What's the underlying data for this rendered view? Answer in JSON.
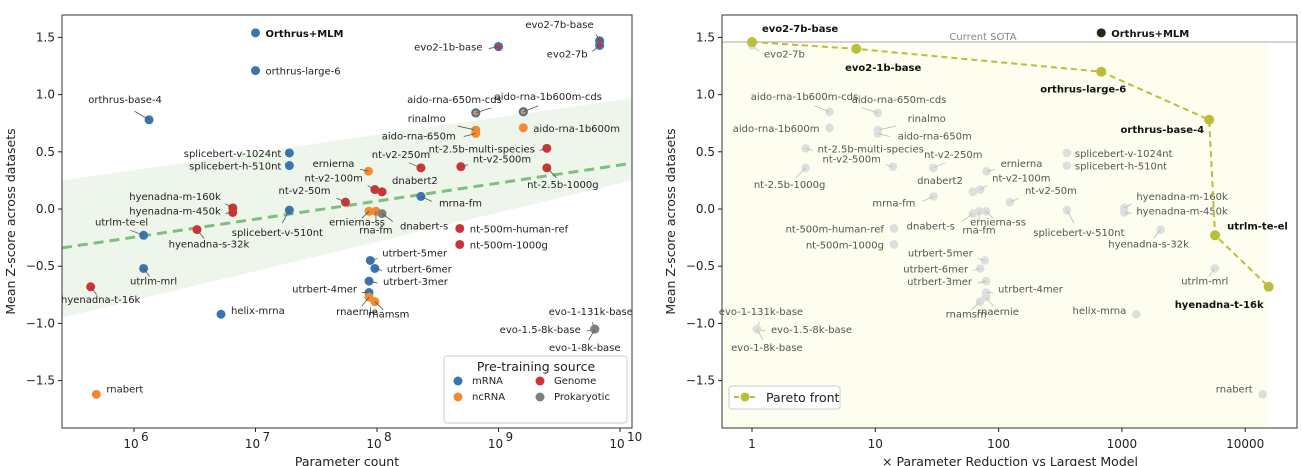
{
  "chart_data": [
    {
      "type": "scatter",
      "xlabel": "Parameter count",
      "ylabel": "Mean Z-score across datasets",
      "xscale": "log",
      "xlim": [
        260000,
        12500000000
      ],
      "ylim": [
        -1.92,
        1.69
      ],
      "xticks": [
        {
          "v": 1000000,
          "label": "10",
          "exp": "6"
        },
        {
          "v": 10000000,
          "label": "10",
          "exp": "7"
        },
        {
          "v": 100000000,
          "label": "10",
          "exp": "8"
        },
        {
          "v": 1000000000,
          "label": "10",
          "exp": "9"
        },
        {
          "v": 10000000000,
          "label": "10",
          "exp": "10"
        }
      ],
      "yticks": [
        1.5,
        1.0,
        0.5,
        0.0,
        -0.5,
        -1.0,
        -1.5
      ],
      "ytick_labels": [
        "1.5",
        "1.0",
        "0.5",
        "0.0",
        "−0.5",
        "−1.0",
        "−1.5"
      ],
      "trend": {
        "x": [
          260000,
          12500000000
        ],
        "y": [
          -0.34,
          0.4
        ],
        "band_upper": [
          0.25,
          0.97
        ],
        "band_lower": [
          -0.95,
          0.25
        ],
        "color": "#7fbf7b",
        "band_color": "#eef6ec"
      },
      "legend": {
        "title": "Pre-training source",
        "placement": "lower-right",
        "entries": [
          "mRNA",
          "ncRNA",
          "Genome",
          "Prokaryotic"
        ]
      },
      "colors": {
        "mRNA": "#3a75b0",
        "ncRNA": "#f28a30",
        "Genome": "#cc3535",
        "Prokaryotic": "#808080"
      },
      "points": [
        {
          "name": "Orthrus+MLM",
          "params": 10000000,
          "score": 1.54,
          "source": "mRNA",
          "highlight": true
        },
        {
          "name": "orthrus-large-6",
          "params": 10000000,
          "score": 1.21,
          "source": "mRNA"
        },
        {
          "name": "orthrus-base-4",
          "params": 1330000,
          "score": 0.78,
          "source": "mRNA"
        },
        {
          "name": "evo2-1b-base",
          "params": 1000000000,
          "score": 1.42,
          "source": "Genome",
          "edge": "mRNA"
        },
        {
          "name": "evo2-7b-base",
          "params": 6800000000,
          "score": 1.47,
          "source": "Genome",
          "edge": "mRNA"
        },
        {
          "name": "evo2-7b",
          "params": 6800000000,
          "score": 1.43,
          "source": "Genome",
          "edge": "mRNA"
        },
        {
          "name": "aido-rna-650m-cds",
          "params": 650000000,
          "score": 0.84,
          "source": "ncRNA",
          "edge": "mRNA"
        },
        {
          "name": "aido-rna-1b600m-cds",
          "params": 1600000000,
          "score": 0.85,
          "source": "ncRNA",
          "edge": "mRNA"
        },
        {
          "name": "rinalmo",
          "params": 650000000,
          "score": 0.69,
          "source": "ncRNA"
        },
        {
          "name": "aido-rna-650m",
          "params": 650000000,
          "score": 0.66,
          "source": "ncRNA"
        },
        {
          "name": "aido-rna-1b600m",
          "params": 1600000000,
          "score": 0.71,
          "source": "ncRNA"
        },
        {
          "name": "splicebert-v-1024nt",
          "params": 19000000,
          "score": 0.49,
          "source": "mRNA"
        },
        {
          "name": "splicebert-h-510nt",
          "params": 19000000,
          "score": 0.38,
          "source": "mRNA"
        },
        {
          "name": "ernierna",
          "params": 85000000,
          "score": 0.33,
          "source": "ncRNA"
        },
        {
          "name": "nt-v2-250m",
          "params": 230000000,
          "score": 0.36,
          "source": "Genome"
        },
        {
          "name": "nt-v2-500m",
          "params": 490000000,
          "score": 0.37,
          "source": "Genome"
        },
        {
          "name": "nt-2.5b-multi-species",
          "params": 2500000000,
          "score": 0.53,
          "source": "Genome"
        },
        {
          "name": "nt-2.5b-1000g",
          "params": 2500000000,
          "score": 0.36,
          "source": "Genome"
        },
        {
          "name": "nt-v2-100m",
          "params": 96000000,
          "score": 0.17,
          "source": "Genome"
        },
        {
          "name": "dnabert2",
          "params": 110000000,
          "score": 0.15,
          "source": "Genome"
        },
        {
          "name": "mrna-fm",
          "params": 230000000,
          "score": 0.11,
          "source": "mRNA"
        },
        {
          "name": "nt-v2-50m",
          "params": 55000000,
          "score": 0.06,
          "source": "Genome"
        },
        {
          "name": "hyenadna-m-160k",
          "params": 6500000,
          "score": 0.01,
          "source": "Genome"
        },
        {
          "name": "hyenadna-m-450k",
          "params": 6500000,
          "score": -0.03,
          "source": "Genome"
        },
        {
          "name": "splicebert-v-510nt",
          "params": 19000000,
          "score": -0.01,
          "source": "mRNA"
        },
        {
          "name": "ernierna-ss",
          "params": 86000000,
          "score": -0.02,
          "source": "ncRNA"
        },
        {
          "name": "rna-fm",
          "params": 98000000,
          "score": -0.02,
          "source": "ncRNA"
        },
        {
          "name": "dnabert-s",
          "params": 110000000,
          "score": -0.04,
          "source": "Prokaryotic"
        },
        {
          "name": "utrlm-te-el",
          "params": 1200000,
          "score": -0.23,
          "source": "mRNA"
        },
        {
          "name": "hyenadna-s-32k",
          "params": 3300000,
          "score": -0.18,
          "source": "Genome"
        },
        {
          "name": "nt-500m-human-ref",
          "params": 480000000,
          "score": -0.17,
          "source": "Genome"
        },
        {
          "name": "nt-500m-1000g",
          "params": 480000000,
          "score": -0.31,
          "source": "Genome"
        },
        {
          "name": "utrbert-5mer",
          "params": 88000000,
          "score": -0.45,
          "source": "mRNA"
        },
        {
          "name": "utrbert-6mer",
          "params": 96000000,
          "score": -0.52,
          "source": "mRNA"
        },
        {
          "name": "utrbert-3mer",
          "params": 86000000,
          "score": -0.63,
          "source": "mRNA"
        },
        {
          "name": "utrbert-4mer",
          "params": 86000000,
          "score": -0.73,
          "source": "mRNA"
        },
        {
          "name": "rnaernie",
          "params": 86000000,
          "score": -0.77,
          "source": "ncRNA"
        },
        {
          "name": "rnamsm",
          "params": 96000000,
          "score": -0.81,
          "source": "ncRNA"
        },
        {
          "name": "utrlm-mrl",
          "params": 1200000,
          "score": -0.52,
          "source": "mRNA"
        },
        {
          "name": "hyenadna-t-16k",
          "params": 440000,
          "score": -0.68,
          "source": "Genome"
        },
        {
          "name": "helix-mrna",
          "params": 5200000,
          "score": -0.92,
          "source": "mRNA"
        },
        {
          "name": "evo-1-131k-base",
          "params": 6200000000,
          "score": -1.05,
          "source": "Prokaryotic"
        },
        {
          "name": "evo-1.5-8k-base",
          "params": 6200000000,
          "score": -1.05,
          "source": "Prokaryotic"
        },
        {
          "name": "evo-1-8k-base",
          "params": 6200000000,
          "score": -1.05,
          "source": "Prokaryotic"
        },
        {
          "name": "rnabert",
          "params": 490000,
          "score": -1.62,
          "source": "ncRNA"
        }
      ]
    },
    {
      "type": "scatter",
      "xlabel": "× Parameter Reduction vs Largest Model",
      "ylabel": "Mean Z-score across datasets",
      "xscale": "log",
      "xlim": [
        0.57,
        26000
      ],
      "ylim": [
        -1.92,
        1.69
      ],
      "xticks": [
        {
          "v": 1,
          "label": "1"
        },
        {
          "v": 10,
          "label": "10"
        },
        {
          "v": 100,
          "label": "100"
        },
        {
          "v": 1000,
          "label": "1000"
        },
        {
          "v": 10000,
          "label": "10000"
        }
      ],
      "yticks": [
        1.5,
        1.0,
        0.5,
        0.0,
        -0.5,
        -1.0,
        -1.5
      ],
      "ytick_labels": [
        "1.5",
        "1.0",
        "0.5",
        "0.0",
        "−0.5",
        "−1.0",
        "−1.5"
      ],
      "sota": {
        "label": "Current SOTA",
        "y": 1.46,
        "color": "#bbbbbb"
      },
      "pareto": {
        "label": "Pareto front",
        "color": "#bcbd3a",
        "fill": "#fdfdf0",
        "legend_placement": "lower-left",
        "points": [
          {
            "name": "evo2-7b-base",
            "x": 1,
            "y": 1.46
          },
          {
            "name": "evo2-1b-base",
            "x": 7,
            "y": 1.4
          },
          {
            "name": "orthrus-large-6",
            "x": 680,
            "y": 1.2
          },
          {
            "name": "orthrus-base-4",
            "x": 5100,
            "y": 0.78
          },
          {
            "name": "utrlm-te-el",
            "x": 5700,
            "y": -0.23
          },
          {
            "name": "hyenadna-t-16k",
            "x": 15500,
            "y": -0.68
          }
        ]
      },
      "highlight": {
        "name": "Orthrus+MLM",
        "x": 680,
        "y": 1.54,
        "color": "#1e2a14"
      },
      "other_color": "#dedede",
      "other_points_note_text": ""
    }
  ]
}
